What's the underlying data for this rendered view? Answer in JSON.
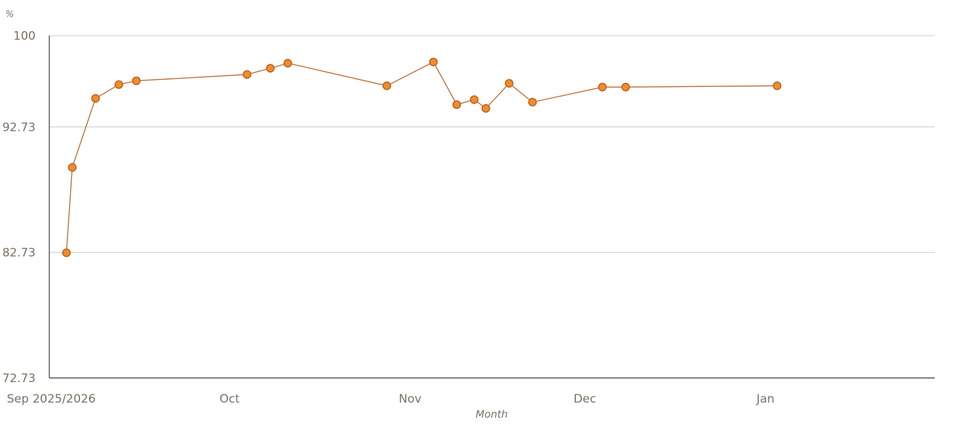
{
  "chart_data": {
    "type": "line",
    "y_unit": "%",
    "xlabel": "Month",
    "ylabel": "",
    "ylim": [
      72.73,
      100
    ],
    "y_ticks": [
      72.73,
      82.73,
      92.73,
      100
    ],
    "y_tick_labels": [
      "72.73",
      "82.73",
      "92.73",
      "100"
    ],
    "x_range": [
      "2025-09-01",
      "2026-01-31"
    ],
    "x_ticks": [
      "2025-09-01",
      "2025-10-01",
      "2025-11-01",
      "2025-12-01",
      "2026-01-01"
    ],
    "x_tick_labels": [
      "Sep 2025/2026",
      "Oct",
      "Nov",
      "Dec",
      "Jan"
    ],
    "grid": true,
    "series": [
      {
        "x": [
          "2025-09-03",
          "2025-09-04",
          "2025-09-08",
          "2025-09-12",
          "2025-09-15",
          "2025-10-04",
          "2025-10-08",
          "2025-10-11",
          "2025-10-28",
          "2025-11-05",
          "2025-11-09",
          "2025-11-12",
          "2025-11-14",
          "2025-11-18",
          "2025-11-22",
          "2025-12-04",
          "2025-12-08",
          "2026-01-03"
        ],
        "y": [
          82.7,
          89.5,
          95.0,
          96.1,
          96.4,
          96.9,
          97.4,
          97.8,
          96.0,
          97.9,
          94.5,
          94.9,
          94.2,
          96.2,
          94.7,
          95.9,
          95.9,
          96.0
        ]
      }
    ],
    "colors": {
      "line": "#b5652a",
      "marker_fill": "#f28c28",
      "marker_stroke": "#b5652a",
      "grid": "#c9c9c9",
      "text": "#7a7166"
    }
  }
}
